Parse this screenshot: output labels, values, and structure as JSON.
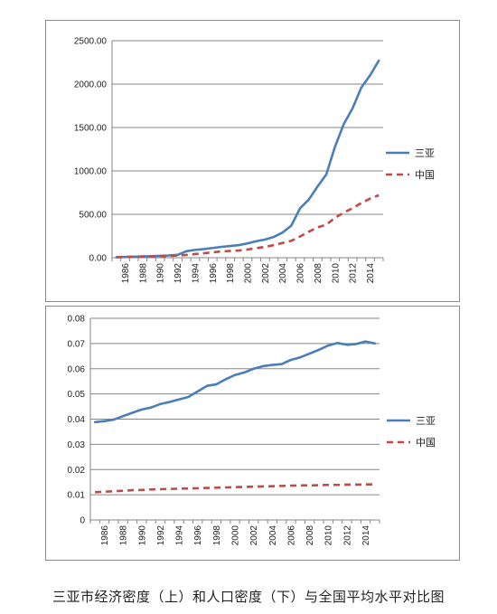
{
  "caption": "三亚市经济密度（上）和人口密度（下）与全国平均水平对比图",
  "colors": {
    "sanya": "#4a7ebb",
    "china": "#be4b48",
    "grid": "#868686",
    "axis": "#868686"
  },
  "chart_data": [
    {
      "type": "line",
      "name": "economic-density",
      "title": "",
      "xlabel": "",
      "ylabel": "",
      "x": [
        1985,
        1986,
        1987,
        1988,
        1989,
        1990,
        1991,
        1992,
        1993,
        1994,
        1995,
        1996,
        1997,
        1998,
        1999,
        2000,
        2001,
        2002,
        2003,
        2004,
        2005,
        2006,
        2007,
        2008,
        2009,
        2010,
        2011,
        2012,
        2013,
        2014,
        2015
      ],
      "xticks": [
        "1986",
        "1988",
        "1990",
        "1992",
        "1994",
        "1996",
        "1998",
        "2000",
        "2002",
        "2004",
        "2006",
        "2008",
        "2010",
        "2012",
        "2014"
      ],
      "yticks": [
        "0.00",
        "500.00",
        "1000.00",
        "1500.00",
        "2000.00",
        "2500.00"
      ],
      "ylim": [
        0,
        2500
      ],
      "grid": true,
      "legend_position": "right",
      "series": [
        {
          "name": "三亚",
          "style": "solid",
          "values": [
            5,
            8,
            11,
            15,
            18,
            22,
            26,
            33,
            75,
            90,
            100,
            112,
            125,
            135,
            145,
            165,
            190,
            210,
            240,
            290,
            370,
            570,
            670,
            820,
            960,
            1280,
            1540,
            1720,
            1960,
            2100,
            2270
          ]
        },
        {
          "name": "中国",
          "style": "dashed",
          "values": [
            7,
            9,
            11,
            13,
            15,
            18,
            20,
            25,
            32,
            42,
            52,
            62,
            72,
            78,
            83,
            95,
            110,
            125,
            145,
            170,
            195,
            245,
            300,
            350,
            380,
            460,
            520,
            570,
            630,
            680,
            720
          ]
        }
      ]
    },
    {
      "type": "line",
      "name": "population-density",
      "title": "",
      "xlabel": "",
      "ylabel": "",
      "x": [
        1985,
        1986,
        1987,
        1988,
        1989,
        1990,
        1991,
        1992,
        1993,
        1994,
        1995,
        1996,
        1997,
        1998,
        1999,
        2000,
        2001,
        2002,
        2003,
        2004,
        2005,
        2006,
        2007,
        2008,
        2009,
        2010,
        2011,
        2012,
        2013,
        2014,
        2015
      ],
      "xticks": [
        "1986",
        "1988",
        "1990",
        "1992",
        "1994",
        "1996",
        "1998",
        "2000",
        "2002",
        "2004",
        "2006",
        "2008",
        "2010",
        "2012",
        "2014"
      ],
      "yticks": [
        "0",
        "0.01",
        "0.02",
        "0.03",
        "0.04",
        "0.05",
        "0.06",
        "0.07",
        "0.08"
      ],
      "ylim": [
        0,
        0.08
      ],
      "grid": true,
      "legend_position": "right",
      "series": [
        {
          "name": "三亚",
          "style": "solid",
          "values": [
            0.0388,
            0.0392,
            0.0398,
            0.0412,
            0.0425,
            0.0438,
            0.0446,
            0.046,
            0.0468,
            0.0478,
            0.0488,
            0.051,
            0.0532,
            0.0538,
            0.0558,
            0.0575,
            0.0585,
            0.06,
            0.061,
            0.0615,
            0.0618,
            0.0635,
            0.0645,
            0.066,
            0.0675,
            0.0692,
            0.0702,
            0.0695,
            0.0698,
            0.0708,
            0.07
          ]
        },
        {
          "name": "中国",
          "style": "dashed",
          "values": [
            0.011,
            0.0112,
            0.0114,
            0.0116,
            0.0118,
            0.0119,
            0.0121,
            0.0122,
            0.0123,
            0.0124,
            0.0125,
            0.0126,
            0.0127,
            0.0128,
            0.0129,
            0.013,
            0.0131,
            0.0132,
            0.0133,
            0.0134,
            0.0135,
            0.0136,
            0.0137,
            0.0137,
            0.0138,
            0.0139,
            0.0139,
            0.014,
            0.014,
            0.0141,
            0.0141
          ]
        }
      ]
    }
  ]
}
